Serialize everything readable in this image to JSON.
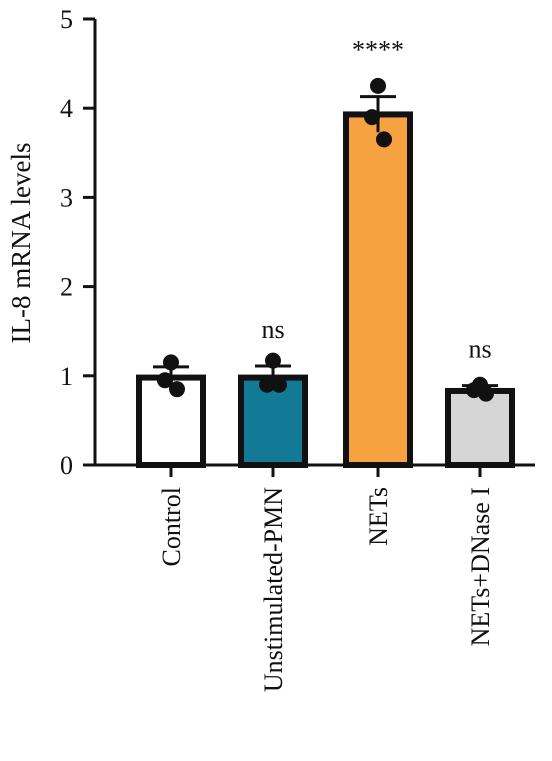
{
  "chart_data": {
    "type": "bar",
    "categories": [
      "Control",
      "Unstimulated-PMN",
      "NETs",
      "NETs+DNase I"
    ],
    "values": [
      0.98,
      0.98,
      3.93,
      0.83
    ],
    "errors": [
      0.12,
      0.13,
      0.2,
      0.06
    ],
    "points": [
      [
        1.15,
        0.95,
        0.85
      ],
      [
        1.17,
        0.9,
        0.9
      ],
      [
        4.25,
        3.9,
        3.65
      ],
      [
        0.9,
        0.84,
        0.8
      ]
    ],
    "significance": [
      "",
      "ns",
      "****",
      "ns"
    ],
    "bar_colors": [
      "#ffffff",
      "#127a96",
      "#f7a240",
      "#d6d6d6"
    ],
    "ylabel": "IL-8 mRNA levels",
    "xlabel": "",
    "title": "",
    "ylim": [
      0,
      5
    ],
    "yticks": [
      "0",
      "1",
      "2",
      "3",
      "4",
      "5"
    ],
    "grid": false
  }
}
